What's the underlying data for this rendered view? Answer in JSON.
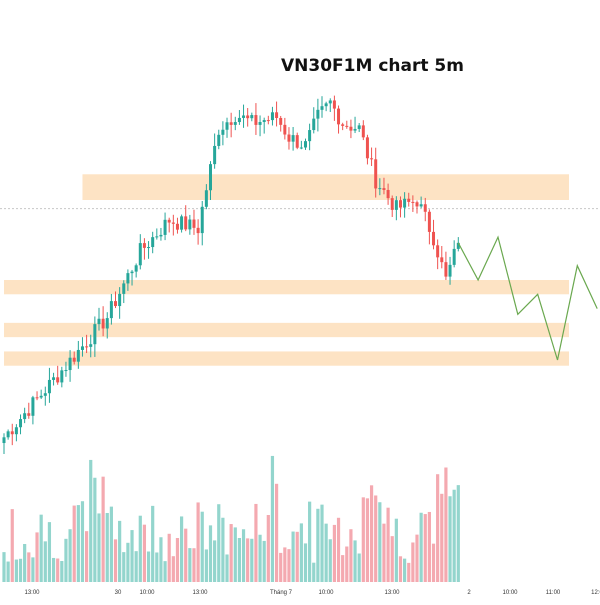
{
  "title": "VN30F1M chart 5m",
  "colors": {
    "up": "#26a69a",
    "down": "#ef5350",
    "vol_up": "#93d5cd",
    "vol_down": "#f4a9b0",
    "zone": "#fde3c4",
    "projection": "#6aa84f",
    "price_line": "#c8c8c8"
  },
  "chart_data": {
    "type": "candlestick",
    "title": "VN30F1M chart 5m",
    "x_ticks": [
      "13:00",
      "30",
      "10:00",
      "13:00",
      "Tháng 7",
      "10:00",
      "13:00",
      "2",
      "10:00",
      "11:00",
      "12:0"
    ],
    "ohlc_segments": [
      [
        0,
        1120
      ],
      [
        12,
        1140
      ],
      [
        25,
        1162
      ],
      [
        33,
        1185
      ],
      [
        40,
        1196
      ],
      [
        47,
        1193
      ],
      [
        52,
        1228
      ],
      [
        56,
        1233
      ],
      [
        60,
        1230
      ],
      [
        66,
        1232
      ],
      [
        69,
        1225
      ],
      [
        73,
        1222
      ],
      [
        76,
        1232
      ],
      [
        79,
        1237
      ],
      [
        82,
        1230
      ],
      [
        86,
        1228
      ],
      [
        90,
        1210
      ],
      [
        95,
        1200
      ],
      [
        100,
        1203
      ],
      [
        104,
        1190
      ],
      [
        107,
        1175
      ],
      [
        110,
        1188
      ]
    ],
    "projection": [
      1188,
      1175,
      1190,
      1163,
      1170,
      1147,
      1180,
      1165
    ],
    "zones": [
      {
        "from": 1203,
        "to": 1212,
        "start": 19
      },
      {
        "from": 1170,
        "to": 1175,
        "start": 0
      },
      {
        "from": 1155,
        "to": 1160,
        "start": 0
      },
      {
        "from": 1145,
        "to": 1150,
        "start": 0
      }
    ],
    "current_price": 1200,
    "volume_note": "volume bars colored by candle direction"
  }
}
